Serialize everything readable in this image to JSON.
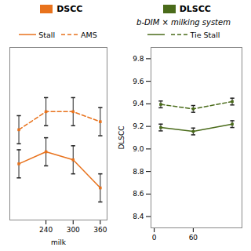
{
  "chart_data": [
    {
      "type": "line",
      "title": "DSCC",
      "color": "#E8721C",
      "x": [
        180,
        240,
        300,
        360
      ],
      "series": [
        {
          "name": "Stall",
          "color": "#E8721C",
          "line_style": "solid",
          "marker": "square",
          "values": [
            9.19,
            9.22,
            9.2,
            9.13
          ],
          "errors": [
            0.035,
            0.035,
            0.035,
            0.035
          ]
        },
        {
          "name": "AMS",
          "color": "#E8721C",
          "line_style": "dashed",
          "marker": "square",
          "values": [
            9.275,
            9.32,
            9.32,
            9.295
          ],
          "errors": [
            0.035,
            0.035,
            0.035,
            0.035
          ]
        }
      ],
      "xlabel": "milk",
      "xlim": [
        160,
        375
      ],
      "xticks": [
        240,
        300,
        360
      ],
      "ylim": [
        9.05,
        9.48
      ],
      "tick_labels": "x"
    },
    {
      "type": "line",
      "title": "DLSCC",
      "subtitle": "b-DIM × milking system",
      "color": "#4A6B1A",
      "x": [
        10,
        60,
        120
      ],
      "series": [
        {
          "color": "#4A6B1A",
          "line_style": "solid",
          "marker": "square",
          "values": [
            9.19,
            9.155,
            9.22
          ],
          "errors": [
            0.03,
            0.03,
            0.03
          ]
        },
        {
          "name": "Tie Stall",
          "color": "#4A6B1A",
          "line_style": "dashed",
          "marker": "square",
          "values": [
            9.395,
            9.355,
            9.42
          ],
          "errors": [
            0.03,
            0.03,
            0.03
          ]
        }
      ],
      "ylabel": "DLSCC",
      "xlim": [
        -5,
        135
      ],
      "xticks": [
        0,
        60
      ],
      "ylim": [
        8.3,
        9.9
      ],
      "yticks": [
        8.4,
        8.6,
        8.8,
        9.0,
        9.2,
        9.4,
        9.6,
        9.8
      ]
    }
  ]
}
